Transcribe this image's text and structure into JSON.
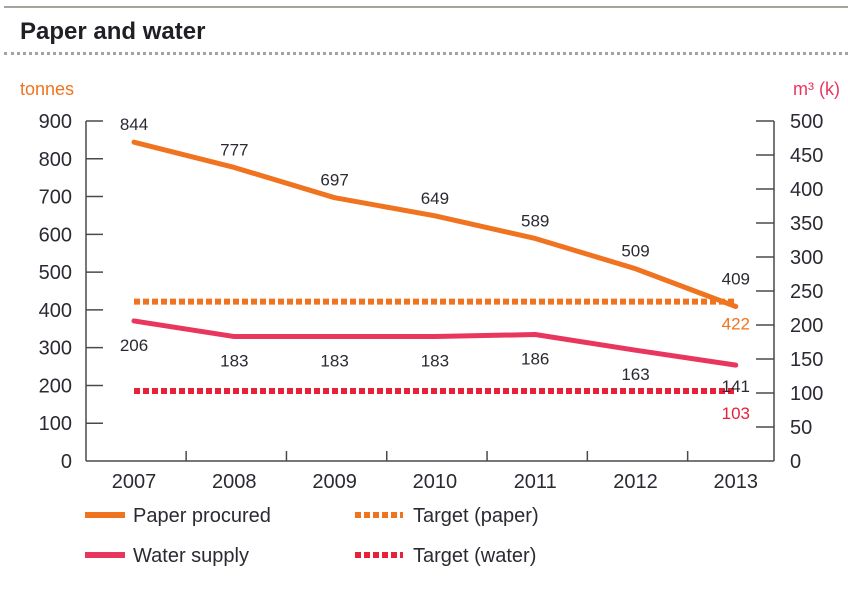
{
  "title": "Paper and water",
  "colors": {
    "paper": "#f07320",
    "water": "#e8365f",
    "target_paper": "#f07320",
    "target_water": "#e8203a",
    "axis": "#4a4a4a",
    "text": "#2a2a33",
    "rule": "#a8a29c"
  },
  "chart_data": {
    "type": "line",
    "title": "Paper and water",
    "categories": [
      "2007",
      "2008",
      "2009",
      "2010",
      "2011",
      "2012",
      "2013"
    ],
    "left_axis": {
      "label": "tonnes",
      "ylim": [
        0,
        900
      ],
      "ticks": [
        0,
        100,
        200,
        300,
        400,
        500,
        600,
        700,
        800,
        900
      ]
    },
    "right_axis": {
      "label": "m³ (k)",
      "ylim": [
        0,
        500
      ],
      "ticks": [
        0,
        50,
        100,
        150,
        200,
        250,
        300,
        350,
        400,
        450,
        500
      ]
    },
    "series": [
      {
        "name": "Paper procured",
        "axis": "left",
        "style": "solid",
        "values": [
          844,
          777,
          697,
          649,
          589,
          509,
          409
        ],
        "labels": [
          "844",
          "777",
          "697",
          "649",
          "589",
          "509",
          "409"
        ]
      },
      {
        "name": "Water supply",
        "axis": "right",
        "style": "solid",
        "values": [
          206,
          183,
          183,
          183,
          186,
          163,
          141
        ],
        "labels": [
          "206",
          "183",
          "183",
          "183",
          "186",
          "163",
          "141"
        ]
      },
      {
        "name": "Target (paper)",
        "axis": "left",
        "style": "dotted",
        "value": 422,
        "label": "422"
      },
      {
        "name": "Target (water)",
        "axis": "right",
        "style": "dotted",
        "value": 103,
        "label": "103"
      }
    ],
    "legend": [
      "Paper procured",
      "Target (paper)",
      "Water supply",
      "Target (water)"
    ],
    "legend_position": "bottom",
    "grid": false
  }
}
